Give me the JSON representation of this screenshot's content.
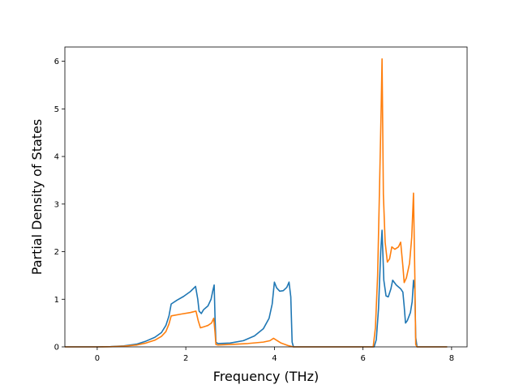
{
  "chart_data": {
    "type": "line",
    "title": "",
    "xlabel": "Frequency (THz)",
    "ylabel": "Partial Density of States",
    "xlim": [
      -0.73,
      8.35
    ],
    "ylim": [
      0,
      6.3
    ],
    "xticks": [
      0,
      2,
      4,
      6,
      8
    ],
    "yticks": [
      0,
      1,
      2,
      3,
      4,
      5,
      6
    ],
    "grid": false,
    "legend": "none",
    "series": [
      {
        "color": "#1f77b4",
        "points": [
          [
            -0.73,
            0
          ],
          [
            0,
            0
          ],
          [
            0.3,
            0.005
          ],
          [
            0.6,
            0.02
          ],
          [
            0.9,
            0.06
          ],
          [
            1.1,
            0.12
          ],
          [
            1.3,
            0.2
          ],
          [
            1.45,
            0.3
          ],
          [
            1.55,
            0.45
          ],
          [
            1.62,
            0.65
          ],
          [
            1.67,
            0.9
          ],
          [
            1.8,
            0.98
          ],
          [
            1.95,
            1.06
          ],
          [
            2.1,
            1.16
          ],
          [
            2.22,
            1.27
          ],
          [
            2.27,
            1.0
          ],
          [
            2.3,
            0.75
          ],
          [
            2.35,
            0.7
          ],
          [
            2.4,
            0.78
          ],
          [
            2.5,
            0.86
          ],
          [
            2.57,
            1.0
          ],
          [
            2.61,
            1.18
          ],
          [
            2.64,
            1.3
          ],
          [
            2.66,
            0.6
          ],
          [
            2.68,
            0.1
          ],
          [
            2.72,
            0.07
          ],
          [
            3.0,
            0.08
          ],
          [
            3.3,
            0.13
          ],
          [
            3.55,
            0.23
          ],
          [
            3.75,
            0.38
          ],
          [
            3.88,
            0.6
          ],
          [
            3.95,
            0.9
          ],
          [
            4.0,
            1.36
          ],
          [
            4.05,
            1.24
          ],
          [
            4.12,
            1.17
          ],
          [
            4.2,
            1.18
          ],
          [
            4.28,
            1.25
          ],
          [
            4.33,
            1.36
          ],
          [
            4.37,
            1.05
          ],
          [
            4.4,
            0.1
          ],
          [
            4.43,
            0
          ],
          [
            6.25,
            0
          ],
          [
            6.3,
            0.15
          ],
          [
            6.35,
            0.8
          ],
          [
            6.4,
            2.0
          ],
          [
            6.43,
            2.45
          ],
          [
            6.47,
            1.4
          ],
          [
            6.52,
            1.07
          ],
          [
            6.57,
            1.05
          ],
          [
            6.63,
            1.22
          ],
          [
            6.67,
            1.4
          ],
          [
            6.75,
            1.3
          ],
          [
            6.85,
            1.22
          ],
          [
            6.9,
            1.15
          ],
          [
            6.93,
            0.85
          ],
          [
            6.96,
            0.5
          ],
          [
            7.0,
            0.55
          ],
          [
            7.07,
            0.72
          ],
          [
            7.11,
            0.95
          ],
          [
            7.14,
            1.4
          ],
          [
            7.17,
            1.2
          ],
          [
            7.19,
            0.2
          ],
          [
            7.22,
            0
          ],
          [
            7.9,
            0
          ]
        ]
      },
      {
        "color": "#ff7f0e",
        "points": [
          [
            -0.73,
            0
          ],
          [
            0,
            0
          ],
          [
            0.3,
            0.003
          ],
          [
            0.6,
            0.015
          ],
          [
            0.9,
            0.04
          ],
          [
            1.1,
            0.08
          ],
          [
            1.3,
            0.14
          ],
          [
            1.45,
            0.22
          ],
          [
            1.55,
            0.32
          ],
          [
            1.62,
            0.48
          ],
          [
            1.67,
            0.65
          ],
          [
            1.9,
            0.69
          ],
          [
            2.1,
            0.72
          ],
          [
            2.23,
            0.75
          ],
          [
            2.28,
            0.55
          ],
          [
            2.33,
            0.4
          ],
          [
            2.4,
            0.42
          ],
          [
            2.5,
            0.45
          ],
          [
            2.58,
            0.5
          ],
          [
            2.63,
            0.6
          ],
          [
            2.66,
            0.3
          ],
          [
            2.68,
            0.05
          ],
          [
            2.72,
            0.04
          ],
          [
            3.0,
            0.05
          ],
          [
            3.4,
            0.07
          ],
          [
            3.75,
            0.1
          ],
          [
            3.9,
            0.13
          ],
          [
            3.98,
            0.18
          ],
          [
            4.03,
            0.15
          ],
          [
            4.15,
            0.08
          ],
          [
            4.3,
            0.03
          ],
          [
            4.43,
            0
          ],
          [
            6.23,
            0
          ],
          [
            6.28,
            0.4
          ],
          [
            6.33,
            1.5
          ],
          [
            6.37,
            3.2
          ],
          [
            6.41,
            5.0
          ],
          [
            6.43,
            6.05
          ],
          [
            6.46,
            3.2
          ],
          [
            6.5,
            2.2
          ],
          [
            6.55,
            1.78
          ],
          [
            6.6,
            1.85
          ],
          [
            6.65,
            2.1
          ],
          [
            6.72,
            2.05
          ],
          [
            6.8,
            2.1
          ],
          [
            6.85,
            2.2
          ],
          [
            6.9,
            1.7
          ],
          [
            6.93,
            1.35
          ],
          [
            6.98,
            1.45
          ],
          [
            7.05,
            1.75
          ],
          [
            7.1,
            2.3
          ],
          [
            7.14,
            3.23
          ],
          [
            7.17,
            1.5
          ],
          [
            7.19,
            0.05
          ],
          [
            7.22,
            0
          ],
          [
            7.9,
            0
          ]
        ]
      }
    ]
  }
}
